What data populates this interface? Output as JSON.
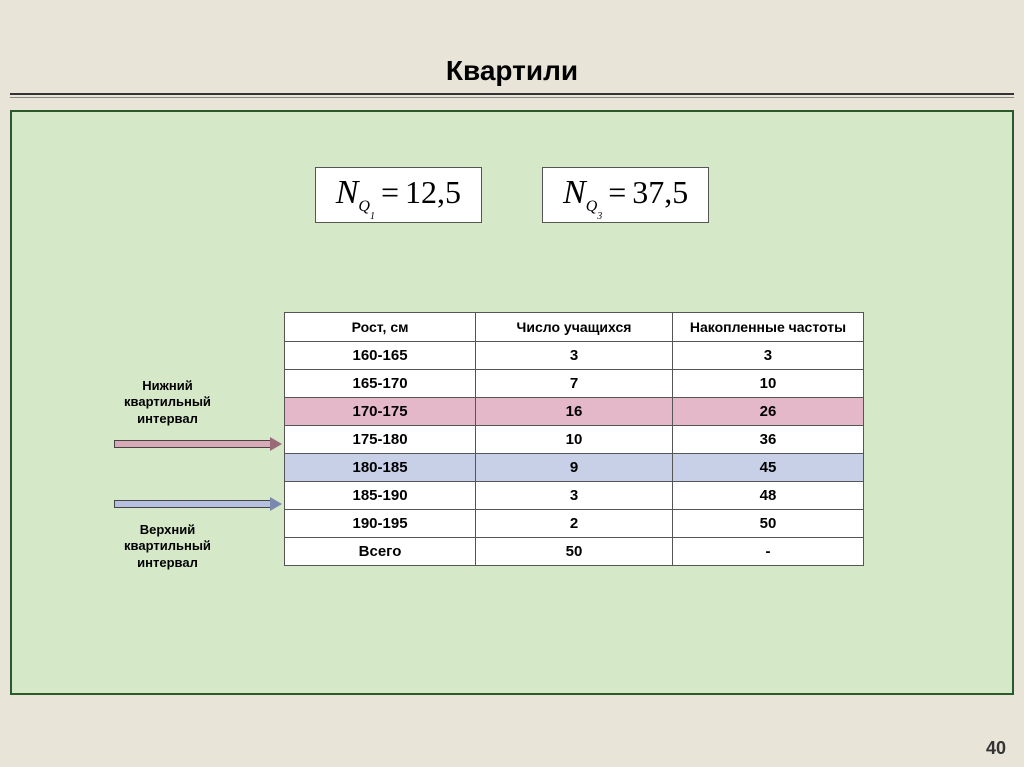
{
  "title": "Квартили",
  "formulas": {
    "q1": {
      "N": "N",
      "sub": "Q",
      "subsub": "1",
      "eq": "=",
      "val": "12,5"
    },
    "q3": {
      "N": "N",
      "sub": "Q",
      "subsub": "3",
      "eq": "=",
      "val": "37,5"
    }
  },
  "table": {
    "headers": [
      "Рост, см",
      "Число учащихся",
      "Накопленные частоты"
    ],
    "rows": [
      {
        "cells": [
          "160-165",
          "3",
          "3"
        ],
        "hl": ""
      },
      {
        "cells": [
          "165-170",
          "7",
          "10"
        ],
        "hl": ""
      },
      {
        "cells": [
          "170-175",
          "16",
          "26"
        ],
        "hl": "pink"
      },
      {
        "cells": [
          "175-180",
          "10",
          "36"
        ],
        "hl": ""
      },
      {
        "cells": [
          "180-185",
          "9",
          "45"
        ],
        "hl": "blue"
      },
      {
        "cells": [
          "185-190",
          "3",
          "48"
        ],
        "hl": ""
      },
      {
        "cells": [
          "190-195",
          "2",
          "50"
        ],
        "hl": ""
      },
      {
        "cells": [
          "Всего",
          "50",
          "-"
        ],
        "hl": ""
      }
    ],
    "col_widths": [
      "33%",
      "34%",
      "33%"
    ]
  },
  "labels": {
    "lower": "Нижний квартильный интервал",
    "upper": "Верхний квартильный интервал"
  },
  "colors": {
    "page_bg": "#e8e4d8",
    "panel_bg": "#d5e8c8",
    "panel_border": "#2a5a2a",
    "pink_row": "#e4b8c8",
    "blue_row": "#c8d0e8",
    "table_border": "#555"
  },
  "page_number": "40"
}
